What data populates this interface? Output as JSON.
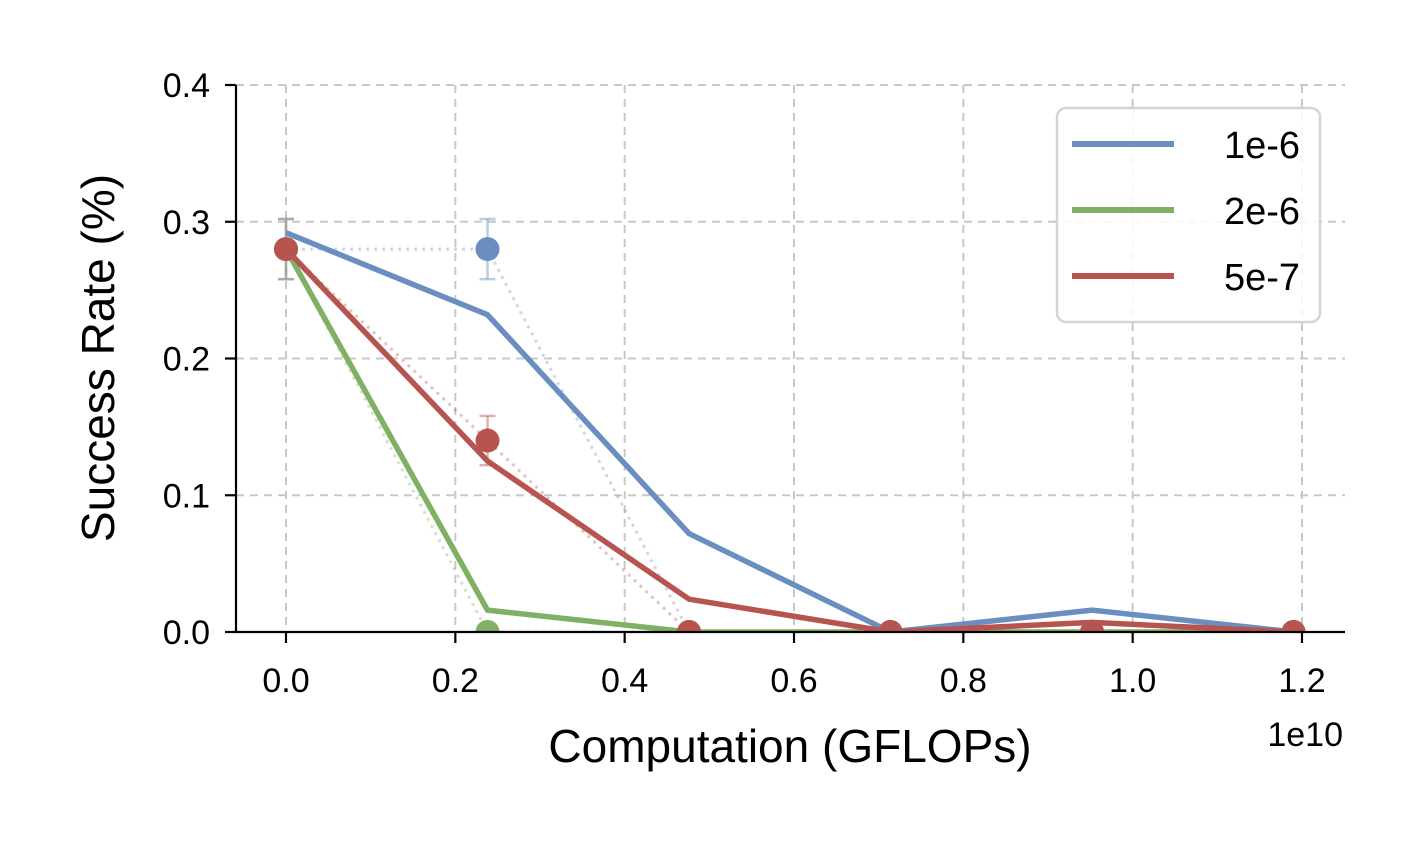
{
  "chart_data": {
    "type": "line",
    "title": "",
    "xlabel": "Computation (GFLOPs)",
    "ylabel": "Success Rate (%)",
    "x_offset_label": "1e10",
    "xlim": [
      -0.06,
      1.25
    ],
    "ylim": [
      0.0,
      0.4
    ],
    "xticks": [
      0.0,
      0.2,
      0.4,
      0.6,
      0.8,
      1.0,
      1.2
    ],
    "xtick_labels": [
      "0.0",
      "0.2",
      "0.4",
      "0.6",
      "0.8",
      "1.0",
      "1.2"
    ],
    "yticks": [
      0.0,
      0.1,
      0.2,
      0.3,
      0.4
    ],
    "ytick_labels": [
      "0.0",
      "0.1",
      "0.2",
      "0.3",
      "0.4"
    ],
    "grid": true,
    "legend_position": "top-right",
    "x": [
      0.0,
      0.238,
      0.476,
      0.714,
      0.952,
      1.19
    ],
    "series": [
      {
        "name": "1e-6",
        "color": "#6a8ec0",
        "smoothed": [
          0.292,
          0.232,
          0.072,
          0.0,
          0.016,
          0.0
        ],
        "raw": [
          0.28,
          0.28,
          0.0,
          0.0,
          0.0,
          0.0
        ],
        "raw_error": [
          0.022,
          0.022,
          0.0,
          0.0,
          0.0,
          0.0
        ]
      },
      {
        "name": "2e-6",
        "color": "#7fb063",
        "smoothed": [
          0.28,
          0.016,
          0.0,
          0.0,
          0.0,
          0.0
        ],
        "raw": [
          0.28,
          0.0,
          0.0,
          0.0,
          0.0,
          0.0
        ],
        "raw_error": [
          0.022,
          0.0,
          0.0,
          0.0,
          0.0,
          0.0
        ]
      },
      {
        "name": "5e-7",
        "color": "#b85450",
        "smoothed": [
          0.28,
          0.125,
          0.024,
          0.0,
          0.007,
          0.0
        ],
        "raw": [
          0.28,
          0.14,
          0.0,
          0.0,
          0.0,
          0.0
        ],
        "raw_error": [
          0.022,
          0.018,
          0.0,
          0.0,
          0.0,
          0.0
        ]
      }
    ]
  }
}
